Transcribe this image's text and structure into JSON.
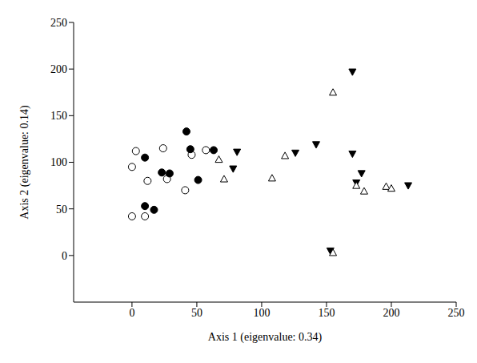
{
  "chart_data": {
    "type": "scatter",
    "x_label": "Axis 1 (eigenvalue: 0.34)",
    "y_label": "Axis 2 (eigenvalue: 0.14)",
    "xlim": [
      -45,
      250
    ],
    "xticks": [
      0,
      50,
      100,
      150,
      200,
      250
    ],
    "ylim": [
      -50,
      250
    ],
    "yticks": [
      0,
      50,
      100,
      150,
      200,
      250
    ],
    "grid": false,
    "series": [
      {
        "color": "#000000",
        "marker": "circle_open",
        "x": [
          0,
          0,
          3,
          10,
          12,
          24,
          27,
          41,
          46,
          57
        ],
        "values": [
          42,
          95,
          112,
          42,
          80,
          115,
          82,
          70,
          108,
          113
        ]
      },
      {
        "color": "#000000",
        "marker": "circle",
        "x": [
          10,
          10,
          17,
          23,
          29,
          42,
          45,
          51,
          63
        ],
        "values": [
          105,
          53,
          49,
          89,
          88,
          133,
          114,
          81,
          113
        ]
      },
      {
        "color": "#000000",
        "marker": "triangle_down",
        "x": [
          81,
          78,
          126,
          142,
          153,
          170,
          170,
          173,
          177,
          213
        ],
        "values": [
          111,
          93,
          110,
          119,
          5,
          197,
          109,
          78,
          88,
          75
        ]
      },
      {
        "color": "#000000",
        "marker": "triangle_open",
        "x": [
          67,
          71,
          108,
          118,
          155,
          155,
          173,
          179,
          196,
          200
        ],
        "values": [
          103,
          82,
          83,
          107,
          175,
          3,
          75,
          69,
          74,
          72
        ]
      }
    ]
  }
}
